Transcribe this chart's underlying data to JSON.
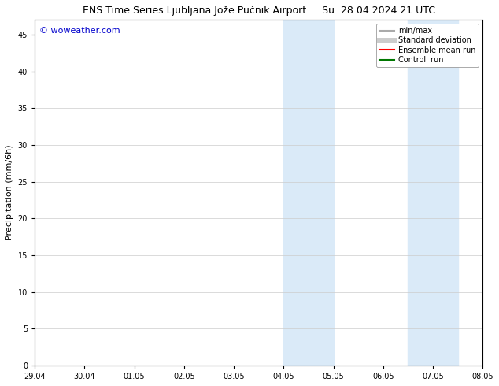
{
  "title": "ENS Time Series Ljubljana Jože Pučnik Airport",
  "title_date": "Su. 28.04.2024 21 UTC",
  "ylabel": "Precipitation (mm/6h)",
  "watermark": "© woweather.com",
  "watermark_color": "#0000cc",
  "xlabel_ticks": [
    "29.04",
    "30.04",
    "01.05",
    "02.05",
    "03.05",
    "04.05",
    "05.05",
    "06.05",
    "07.05",
    "08.05"
  ],
  "xlim_start": 0,
  "xlim_end": 9,
  "ylim": [
    0,
    47
  ],
  "yticks": [
    0,
    5,
    10,
    15,
    20,
    25,
    30,
    35,
    40,
    45
  ],
  "shaded_regions": [
    {
      "x_start": 5.0,
      "x_end": 5.5,
      "color": "#daeaf8"
    },
    {
      "x_start": 5.5,
      "x_end": 6.0,
      "color": "#daeaf8"
    },
    {
      "x_start": 7.5,
      "x_end": 8.0,
      "color": "#daeaf8"
    },
    {
      "x_start": 8.0,
      "x_end": 8.5,
      "color": "#daeaf8"
    }
  ],
  "legend_entries": [
    {
      "label": "min/max",
      "color": "#aaaaaa",
      "lw": 1.5,
      "style": "solid"
    },
    {
      "label": "Standard deviation",
      "color": "#cccccc",
      "lw": 5,
      "style": "solid"
    },
    {
      "label": "Ensemble mean run",
      "color": "#ff0000",
      "lw": 1.5,
      "style": "solid"
    },
    {
      "label": "Controll run",
      "color": "#007700",
      "lw": 1.5,
      "style": "solid"
    }
  ],
  "bg_color": "#ffffff",
  "grid_color": "#cccccc",
  "font_size_title": 9,
  "font_size_ticks": 7,
  "font_size_ylabel": 8,
  "font_size_legend": 7,
  "font_size_watermark": 8
}
